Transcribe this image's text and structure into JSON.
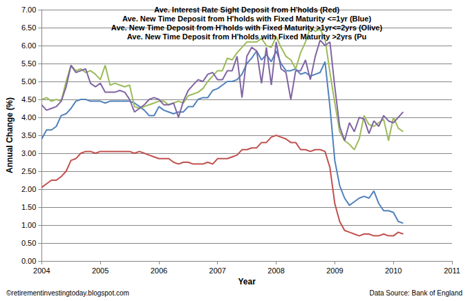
{
  "chart_data": {
    "type": "line",
    "title": "Ave. Interest Rate Sight Deposit from H'holds (Red)\nAve. New Time Deposit from H'holds with Fixed Maturity <=1yr (Blue)\nAve. New Time Deposit from H'holds with Fixed Maturity >1yr<=2yrs (Olive)\nAve. New Time Deposit from H'holds with Fixed Maturity >2yrs (Pu",
    "x_label": "Year",
    "y_label": "Annual Change (%)",
    "annotations": [
      "©retirementinvestingtoday.blogspot.com",
      "Data Source: Bank of England"
    ],
    "x": [
      2004,
      2004.083,
      2004.167,
      2004.25,
      2004.333,
      2004.417,
      2004.5,
      2004.583,
      2004.667,
      2004.75,
      2004.833,
      2004.917,
      2005,
      2005.083,
      2005.167,
      2005.25,
      2005.333,
      2005.417,
      2005.5,
      2005.583,
      2005.667,
      2005.75,
      2005.833,
      2005.917,
      2006,
      2006.083,
      2006.167,
      2006.25,
      2006.333,
      2006.417,
      2006.5,
      2006.583,
      2006.667,
      2006.75,
      2006.833,
      2006.917,
      2007,
      2007.083,
      2007.167,
      2007.25,
      2007.333,
      2007.417,
      2007.5,
      2007.583,
      2007.667,
      2007.75,
      2007.833,
      2007.917,
      2008,
      2008.083,
      2008.167,
      2008.25,
      2008.333,
      2008.417,
      2008.5,
      2008.583,
      2008.667,
      2008.75,
      2008.833,
      2008.917,
      2009,
      2009.083,
      2009.167,
      2009.25,
      2009.333,
      2009.417,
      2009.5,
      2009.583,
      2009.667,
      2009.75,
      2009.833,
      2009.917,
      2010,
      2010.083,
      2010.167
    ],
    "series": [
      {
        "color": "#C0504D",
        "values": [
          2.05,
          2.15,
          2.25,
          2.25,
          2.35,
          2.5,
          2.8,
          2.85,
          3.0,
          3.05,
          3.05,
          3.0,
          3.05,
          3.05,
          3.05,
          3.05,
          3.05,
          3.05,
          3.05,
          3.0,
          3.05,
          3.0,
          2.95,
          2.9,
          2.85,
          2.85,
          2.85,
          2.75,
          2.7,
          2.75,
          2.75,
          2.7,
          2.7,
          2.7,
          2.75,
          2.7,
          2.85,
          2.85,
          2.85,
          2.9,
          2.95,
          3.1,
          3.1,
          3.15,
          3.15,
          3.3,
          3.3,
          3.45,
          3.5,
          3.45,
          3.4,
          3.3,
          3.3,
          3.1,
          3.1,
          3.05,
          3.1,
          3.1,
          3.05,
          2.6,
          1.6,
          1.1,
          0.85,
          0.8,
          0.75,
          0.7,
          0.75,
          0.75,
          0.7,
          0.7,
          0.75,
          0.7,
          0.7,
          0.8,
          0.75
        ]
      },
      {
        "color": "#4F81BD",
        "values": [
          3.4,
          3.65,
          3.65,
          3.75,
          4.05,
          4.1,
          4.25,
          4.45,
          4.5,
          4.5,
          4.45,
          4.45,
          4.45,
          4.4,
          4.45,
          4.45,
          4.45,
          4.45,
          4.45,
          4.4,
          4.3,
          4.2,
          4.05,
          4.05,
          4.3,
          4.2,
          4.15,
          4.1,
          4.15,
          4.15,
          4.3,
          4.3,
          4.5,
          4.55,
          4.55,
          4.75,
          4.8,
          4.9,
          5.0,
          5.0,
          5.05,
          5.2,
          5.5,
          5.65,
          5.85,
          5.6,
          5.75,
          5.55,
          5.85,
          5.5,
          5.3,
          5.3,
          5.35,
          5.2,
          5.25,
          5.15,
          5.2,
          5.25,
          5.55,
          4.3,
          2.8,
          2.1,
          1.75,
          1.55,
          1.65,
          1.75,
          1.8,
          1.75,
          1.95,
          1.6,
          1.4,
          1.4,
          1.35,
          1.1,
          1.05
        ]
      },
      {
        "color": "#9BBB59",
        "values": [
          4.5,
          4.55,
          4.45,
          4.5,
          4.45,
          5.0,
          5.45,
          5.3,
          5.35,
          5.25,
          5.3,
          5.2,
          5.05,
          5.45,
          4.9,
          4.95,
          4.9,
          4.85,
          4.9,
          4.3,
          4.25,
          4.3,
          4.35,
          4.4,
          4.45,
          4.45,
          4.35,
          4.4,
          4.45,
          4.4,
          4.6,
          4.65,
          4.7,
          4.8,
          5.0,
          5.15,
          5.3,
          5.3,
          5.65,
          5.6,
          5.8,
          5.95,
          6.1,
          6.1,
          6.1,
          6.2,
          6.0,
          5.95,
          6.25,
          5.95,
          5.7,
          5.6,
          5.35,
          5.8,
          6.1,
          6.5,
          6.4,
          6.45,
          6.2,
          5.25,
          4.4,
          3.6,
          3.35,
          3.25,
          3.1,
          3.4,
          4.05,
          3.8,
          3.75,
          3.85,
          3.95,
          3.35,
          4.0,
          3.7,
          3.6
        ]
      },
      {
        "color": "#8064A2",
        "values": [
          4.35,
          4.2,
          4.25,
          4.3,
          4.45,
          4.85,
          5.45,
          5.25,
          5.3,
          5.35,
          4.95,
          4.85,
          4.95,
          4.7,
          4.7,
          4.7,
          4.75,
          4.7,
          4.5,
          4.15,
          4.25,
          4.35,
          4.5,
          4.55,
          4.5,
          4.35,
          4.35,
          4.4,
          4.0,
          4.45,
          4.75,
          4.9,
          5.05,
          5.0,
          5.2,
          5.25,
          5.05,
          5.05,
          5.3,
          5.3,
          5.7,
          4.55,
          5.7,
          5.95,
          5.85,
          4.95,
          5.95,
          4.9,
          6.1,
          5.35,
          5.25,
          4.5,
          5.3,
          5.3,
          5.6,
          5.05,
          5.7,
          6.15,
          6.0,
          6.1,
          4.85,
          3.75,
          3.35,
          3.85,
          3.6,
          4.0,
          3.95,
          3.55,
          3.9,
          3.75,
          4.05,
          3.9,
          3.85,
          4.0,
          4.15
        ]
      }
    ],
    "xlim": [
      2004,
      2011
    ],
    "xticks": [
      2004,
      2005,
      2006,
      2007,
      2008,
      2009,
      2010,
      2011
    ],
    "ylim": [
      0,
      7
    ],
    "yticks": [
      {
        "value": 0,
        "label": "0.00"
      },
      {
        "value": 0.5,
        "label": "0.50"
      },
      {
        "value": 1,
        "label": "1.00"
      },
      {
        "value": 1.5,
        "label": "1.50"
      },
      {
        "value": 2,
        "label": "2.00"
      },
      {
        "value": 2.5,
        "label": "2.50"
      },
      {
        "value": 3,
        "label": "3.00"
      },
      {
        "value": 3.5,
        "label": "3.50"
      },
      {
        "value": 4,
        "label": "4.00"
      },
      {
        "value": 4.5,
        "label": "4.50"
      },
      {
        "value": 5,
        "label": "5.00"
      },
      {
        "value": 5.5,
        "label": "5.50"
      },
      {
        "value": 6,
        "label": "6.00"
      },
      {
        "value": 6.5,
        "label": "6.50"
      },
      {
        "value": 7,
        "label": "7.00"
      }
    ],
    "grid": true
  }
}
